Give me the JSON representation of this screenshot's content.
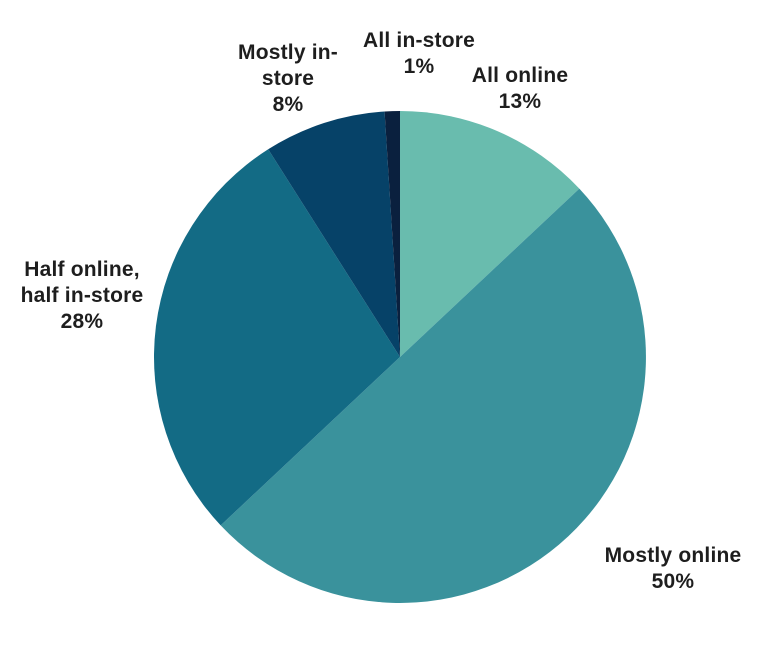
{
  "chart_data": {
    "type": "pie",
    "title": "",
    "start_angle_deg": 0,
    "direction": "clockwise",
    "legend": "none",
    "labels_position": "outside",
    "background": "#FFFFFF",
    "text_color": "#1E1E1E",
    "slices": [
      {
        "label": "All online",
        "value": 13,
        "value_label": "13%",
        "color": "#69BCAE"
      },
      {
        "label": "Mostly online",
        "value": 50,
        "value_label": "50%",
        "color": "#3A929C"
      },
      {
        "label": "Half online, half in-store",
        "value": 28,
        "value_label": "28%",
        "color": "#136B85"
      },
      {
        "label": "Mostly in-store",
        "value": 8,
        "value_label": "8%",
        "color": "#064268"
      },
      {
        "label": "All in-store",
        "value": 1,
        "value_label": "1%",
        "color": "#0A203E"
      }
    ]
  }
}
